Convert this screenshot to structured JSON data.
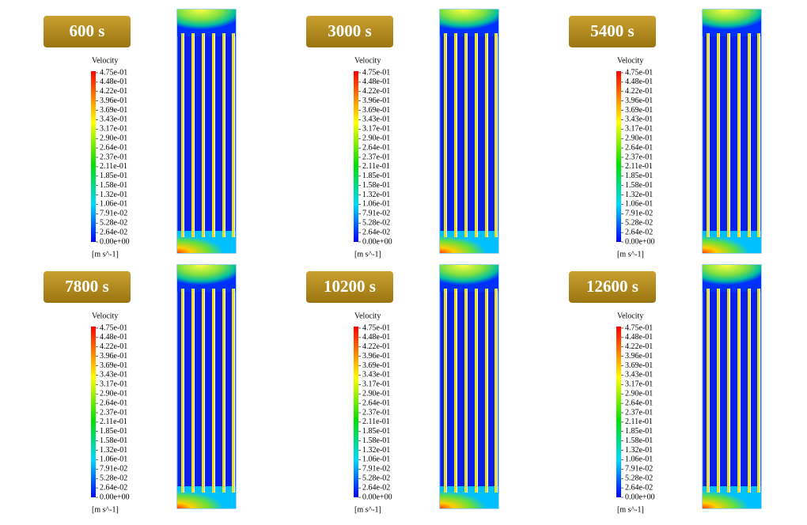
{
  "legend": {
    "title": "Velocity",
    "labels": [
      "4.75e-01",
      "4.48e-01",
      "4.22e-01",
      "3.96e-01",
      "3.69e-01",
      "3.43e-01",
      "3.17e-01",
      "2.90e-01",
      "2.64e-01",
      "2.37e-01",
      "2.11e-01",
      "1.85e-01",
      "1.58e-01",
      "1.32e-01",
      "1.06e-01",
      "7.91e-02",
      "5.28e-02",
      "2.64e-02",
      "0.00e+00"
    ],
    "unit": "[m s^-1]"
  },
  "panels": [
    {
      "time": "600 s"
    },
    {
      "time": "3000 s"
    },
    {
      "time": "5400 s"
    },
    {
      "time": "7800 s"
    },
    {
      "time": "10200 s"
    },
    {
      "time": "12600 s"
    }
  ]
}
